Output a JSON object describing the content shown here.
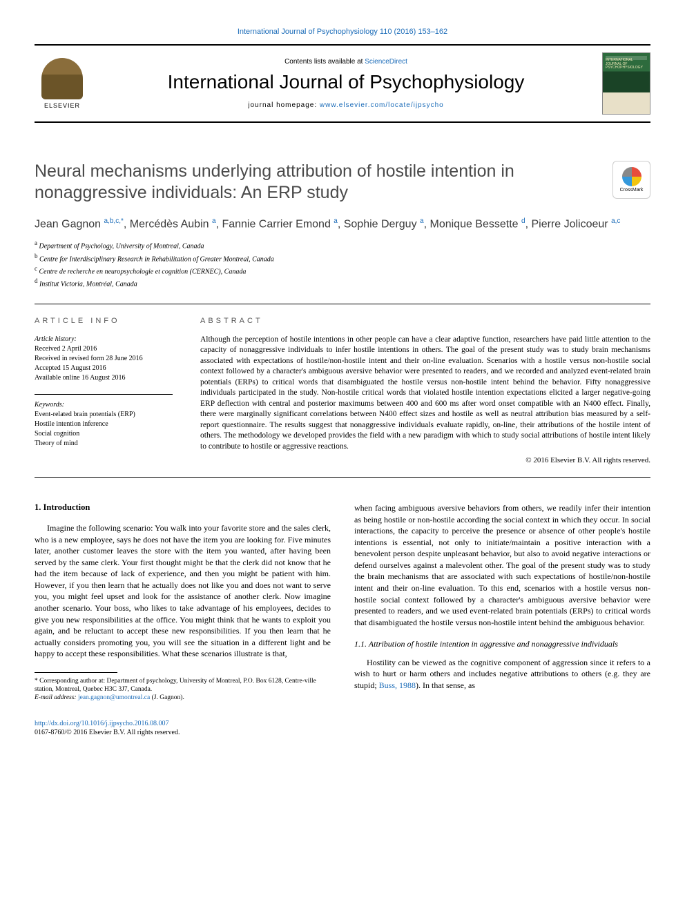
{
  "colors": {
    "link": "#1a6bb8",
    "text": "#000000",
    "title_gray": "#4a4a4a",
    "bg": "#ffffff"
  },
  "fonts": {
    "body_family": "Georgia, 'Times New Roman', serif",
    "sans_family": "Arial, sans-serif",
    "title_size_pt": 25,
    "journal_size_pt": 28,
    "body_size_pt": 12,
    "abstract_size_pt": 11.5,
    "footnote_size_pt": 9.5
  },
  "header": {
    "top_link_text": "International Journal of Psychophysiology 110 (2016) 153–162",
    "contents_prefix": "Contents lists available at ",
    "contents_link": "ScienceDirect",
    "journal_name": "International Journal of Psychophysiology",
    "homepage_prefix": "journal homepage: ",
    "homepage_url": "www.elsevier.com/locate/ijpsycho",
    "publisher_label": "ELSEVIER",
    "cover_label": "INTERNATIONAL JOURNAL OF PSYCHOPHYSIOLOGY",
    "crossmark_label": "CrossMark"
  },
  "article": {
    "title": "Neural mechanisms underlying attribution of hostile intention in nonaggressive individuals: An ERP study",
    "authors_html": "Jean Gagnon <sup>a,b,c,</sup><sup class='star'>*</sup>, Mercédès Aubin <sup>a</sup>, Fannie Carrier Emond <sup>a</sup>, Sophie Derguy <sup>a</sup>, Monique Bessette <sup>d</sup>, Pierre Jolicoeur <sup>a,c</sup>",
    "affiliations": [
      {
        "sup": "a",
        "text": "Department of Psychology, University of Montreal, Canada"
      },
      {
        "sup": "b",
        "text": "Centre for Interdisciplinary Research in Rehabilitation of Greater Montreal, Canada"
      },
      {
        "sup": "c",
        "text": "Centre de recherche en neuropsychologie et cognition (CERNEC), Canada"
      },
      {
        "sup": "d",
        "text": "Institut Victoria, Montréal, Canada"
      }
    ]
  },
  "info": {
    "section_label_info": "article info",
    "section_label_abstract": "abstract",
    "history_label": "Article history:",
    "history_lines": [
      "Received 2 April 2016",
      "Received in revised form 28 June 2016",
      "Accepted 15 August 2016",
      "Available online 16 August 2016"
    ],
    "keywords_label": "Keywords:",
    "keywords": [
      "Event-related brain potentials (ERP)",
      "Hostile intention inference",
      "Social cognition",
      "Theory of mind"
    ]
  },
  "abstract": {
    "text": "Although the perception of hostile intentions in other people can have a clear adaptive function, researchers have paid little attention to the capacity of nonaggressive individuals to infer hostile intentions in others. The goal of the present study was to study brain mechanisms associated with expectations of hostile/non-hostile intent and their on-line evaluation. Scenarios with a hostile versus non-hostile social context followed by a character's ambiguous aversive behavior were presented to readers, and we recorded and analyzed event-related brain potentials (ERPs) to critical words that disambiguated the hostile versus non-hostile intent behind the behavior. Fifty nonaggressive individuals participated in the study. Non-hostile critical words that violated hostile intention expectations elicited a larger negative-going ERP deflection with central and posterior maximums between 400 and 600 ms after word onset compatible with an N400 effect. Finally, there were marginally significant correlations between N400 effect sizes and hostile as well as neutral attribution bias measured by a self-report questionnaire. The results suggest that nonaggressive individuals evaluate rapidly, on-line, their attributions of the hostile intent of others. The methodology we developed provides the field with a new paradigm with which to study social attributions of hostile intent likely to contribute to hostile or aggressive reactions.",
    "copyright": "© 2016 Elsevier B.V. All rights reserved."
  },
  "body": {
    "intro_heading": "1. Introduction",
    "intro_para": "Imagine the following scenario: You walk into your favorite store and the sales clerk, who is a new employee, says he does not have the item you are looking for. Five minutes later, another customer leaves the store with the item you wanted, after having been served by the same clerk. Your first thought might be that the clerk did not know that he had the item because of lack of experience, and then you might be patient with him. However, if you then learn that he actually does not like you and does not want to serve you, you might feel upset and look for the assistance of another clerk. Now imagine another scenario. Your boss, who likes to take advantage of his employees, decides to give you new responsibilities at the office. You might think that he wants to exploit you again, and be reluctant to accept these new responsibilities. If you then learn that he actually considers promoting you, you will see the situation in a different light and be happy to accept these responsibilities. What these scenarios illustrate is that,",
    "col2_para": "when facing ambiguous aversive behaviors from others, we readily infer their intention as being hostile or non-hostile according the social context in which they occur. In social interactions, the capacity to perceive the presence or absence of other people's hostile intentions is essential, not only to initiate/maintain a positive interaction with a benevolent person despite unpleasant behavior, but also to avoid negative interactions or defend ourselves against a malevolent other. The goal of the present study was to study the brain mechanisms that are associated with such expectations of hostile/non-hostile intent and their on-line evaluation. To this end, scenarios with a hostile versus non-hostile social context followed by a character's ambiguous aversive behavior were presented to readers, and we used event-related brain potentials (ERPs) to critical words that disambiguated the hostile versus non-hostile intent behind the ambiguous behavior.",
    "sub_heading": "1.1. Attribution of hostile intention in aggressive and nonaggressive individuals",
    "sub_para_prefix": "Hostility can be viewed as the cognitive component of aggression since it refers to a wish to hurt or harm others and includes negative attributions to others (e.g. they are stupid; ",
    "sub_para_ref": "Buss, 1988",
    "sub_para_suffix": "). In that sense, as"
  },
  "footnote": {
    "corr_label": "* Corresponding author at: Department of psychology, University of Montreal, P.O. Box 6128, Centre-ville station, Montreal, Quebec H3C 3J7, Canada.",
    "email_label": "E-mail address:",
    "email": "jean.gagnon@umontreal.ca",
    "email_person": "(J. Gagnon)."
  },
  "footer": {
    "doi": "http://dx.doi.org/10.1016/j.ijpsycho.2016.08.007",
    "issn_line": "0167-8760/© 2016 Elsevier B.V. All rights reserved."
  }
}
